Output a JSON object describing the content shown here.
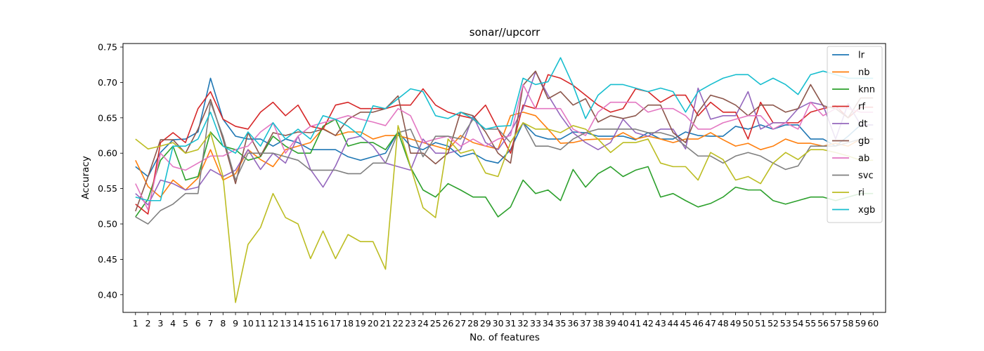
{
  "chart_data": {
    "type": "line",
    "title": "sonar//upcorr",
    "xlabel": "No. of features",
    "ylabel": "Accuracy",
    "xlim": [
      0,
      61
    ],
    "ylim": [
      0.375,
      0.755
    ],
    "grid": false,
    "legend_position": "top-right",
    "x": [
      1,
      2,
      3,
      4,
      5,
      6,
      7,
      8,
      9,
      10,
      11,
      12,
      13,
      14,
      15,
      16,
      17,
      18,
      19,
      20,
      21,
      22,
      23,
      24,
      25,
      26,
      27,
      28,
      29,
      30,
      31,
      32,
      33,
      34,
      35,
      36,
      37,
      38,
      39,
      40,
      41,
      42,
      43,
      44,
      45,
      46,
      47,
      48,
      49,
      50,
      51,
      52,
      53,
      54,
      55,
      56,
      57,
      58,
      59,
      60
    ],
    "x_tick_labels": [
      "1",
      "2",
      "3",
      "4",
      "5",
      "6",
      "7",
      "8",
      "9",
      "10",
      "11",
      "12",
      "13",
      "14",
      "15",
      "16",
      "17",
      "18",
      "19",
      "20",
      "21",
      "22",
      "23",
      "24",
      "25",
      "26",
      "27",
      "28",
      "29",
      "30",
      "31",
      "32",
      "33",
      "34",
      "35",
      "36",
      "37",
      "38",
      "39",
      "40",
      "41",
      "42",
      "43",
      "44",
      "45",
      "46",
      "47",
      "48",
      "49",
      "50",
      "51",
      "52",
      "53",
      "54",
      "55",
      "56",
      "57",
      "58",
      "59",
      "60"
    ],
    "y_ticks": [
      0.4,
      0.45,
      0.5,
      0.55,
      0.6,
      0.65,
      0.7,
      0.75
    ],
    "y_tick_labels": [
      "0.40",
      "0.45",
      "0.50",
      "0.55",
      "0.60",
      "0.65",
      "0.70",
      "0.75"
    ],
    "series": [
      {
        "name": "lr",
        "color": "#1f77b4",
        "values": [
          0.581,
          0.567,
          0.601,
          0.619,
          0.62,
          0.63,
          0.706,
          0.648,
          0.624,
          0.62,
          0.62,
          0.61,
          0.62,
          0.615,
          0.605,
          0.605,
          0.605,
          0.595,
          0.59,
          0.595,
          0.6,
          0.63,
          0.61,
          0.605,
          0.615,
          0.61,
          0.595,
          0.6,
          0.59,
          0.586,
          0.605,
          0.643,
          0.625,
          0.62,
          0.62,
          0.63,
          0.629,
          0.624,
          0.624,
          0.624,
          0.619,
          0.629,
          0.62,
          0.62,
          0.63,
          0.625,
          0.624,
          0.624,
          0.638,
          0.634,
          0.64,
          0.634,
          0.64,
          0.64,
          0.62,
          0.62,
          0.61,
          0.624,
          0.64,
          0.64
        ]
      },
      {
        "name": "nb",
        "color": "#ff7f0e",
        "values": [
          0.59,
          0.553,
          0.538,
          0.562,
          0.548,
          0.565,
          0.605,
          0.562,
          0.571,
          0.605,
          0.591,
          0.581,
          0.605,
          0.61,
          0.615,
          0.635,
          0.625,
          0.63,
          0.63,
          0.62,
          0.625,
          0.625,
          0.62,
          0.615,
          0.61,
          0.605,
          0.625,
          0.615,
          0.61,
          0.606,
          0.653,
          0.658,
          0.653,
          0.634,
          0.614,
          0.615,
          0.619,
          0.62,
          0.62,
          0.629,
          0.62,
          0.624,
          0.62,
          0.615,
          0.62,
          0.62,
          0.629,
          0.619,
          0.61,
          0.614,
          0.605,
          0.61,
          0.62,
          0.614,
          0.614,
          0.61,
          0.614,
          0.61,
          0.62,
          0.62
        ]
      },
      {
        "name": "knn",
        "color": "#2ca02c",
        "values": [
          0.51,
          0.535,
          0.59,
          0.61,
          0.562,
          0.567,
          0.63,
          0.61,
          0.605,
          0.59,
          0.595,
          0.624,
          0.61,
          0.6,
          0.6,
          0.638,
          0.648,
          0.61,
          0.615,
          0.615,
          0.605,
          0.63,
          0.58,
          0.548,
          0.538,
          0.557,
          0.548,
          0.538,
          0.538,
          0.51,
          0.524,
          0.562,
          0.543,
          0.548,
          0.533,
          0.577,
          0.552,
          0.571,
          0.581,
          0.567,
          0.576,
          0.581,
          0.538,
          0.543,
          0.533,
          0.524,
          0.529,
          0.538,
          0.552,
          0.548,
          0.548,
          0.533,
          0.528,
          0.533,
          0.538,
          0.538,
          0.533,
          0.538,
          0.543,
          0.543
        ]
      },
      {
        "name": "rf",
        "color": "#d62728",
        "values": [
          0.528,
          0.514,
          0.615,
          0.629,
          0.615,
          0.663,
          0.687,
          0.648,
          0.638,
          0.634,
          0.658,
          0.672,
          0.653,
          0.668,
          0.638,
          0.634,
          0.668,
          0.672,
          0.663,
          0.663,
          0.663,
          0.668,
          0.668,
          0.691,
          0.668,
          0.658,
          0.653,
          0.649,
          0.668,
          0.634,
          0.6,
          0.668,
          0.663,
          0.711,
          0.706,
          0.696,
          0.682,
          0.668,
          0.658,
          0.663,
          0.691,
          0.687,
          0.672,
          0.682,
          0.682,
          0.653,
          0.672,
          0.658,
          0.658,
          0.62,
          0.672,
          0.643,
          0.643,
          0.643,
          0.658,
          0.663,
          0.667,
          0.65,
          0.665,
          0.665
        ]
      },
      {
        "name": "dt",
        "color": "#9467bd",
        "values": [
          0.543,
          0.527,
          0.562,
          0.557,
          0.548,
          0.552,
          0.577,
          0.567,
          0.576,
          0.605,
          0.577,
          0.6,
          0.586,
          0.624,
          0.577,
          0.552,
          0.582,
          0.62,
          0.624,
          0.61,
          0.586,
          0.581,
          0.576,
          0.62,
          0.6,
          0.6,
          0.605,
          0.653,
          0.615,
          0.605,
          0.63,
          0.663,
          0.715,
          0.682,
          0.653,
          0.629,
          0.615,
          0.605,
          0.615,
          0.648,
          0.629,
          0.624,
          0.634,
          0.634,
          0.606,
          0.692,
          0.648,
          0.653,
          0.653,
          0.687,
          0.634,
          0.643,
          0.643,
          0.663,
          0.672,
          0.668,
          0.62,
          0.67,
          0.64,
          0.64
        ]
      },
      {
        "name": "gb",
        "color": "#8c564b",
        "values": [
          0.518,
          0.567,
          0.619,
          0.619,
          0.6,
          0.634,
          0.676,
          0.62,
          0.557,
          0.629,
          0.596,
          0.629,
          0.625,
          0.63,
          0.629,
          0.634,
          0.625,
          0.648,
          0.658,
          0.658,
          0.663,
          0.681,
          0.6,
          0.6,
          0.585,
          0.6,
          0.658,
          0.653,
          0.63,
          0.6,
          0.586,
          0.696,
          0.716,
          0.677,
          0.687,
          0.668,
          0.677,
          0.644,
          0.653,
          0.649,
          0.653,
          0.668,
          0.668,
          0.629,
          0.615,
          0.658,
          0.682,
          0.677,
          0.668,
          0.653,
          0.668,
          0.668,
          0.658,
          0.663,
          0.697,
          0.667,
          0.663,
          0.65,
          0.678,
          0.678
        ]
      },
      {
        "name": "ab",
        "color": "#e377c2",
        "values": [
          0.557,
          0.52,
          0.6,
          0.581,
          0.576,
          0.586,
          0.596,
          0.596,
          0.605,
          0.61,
          0.63,
          0.643,
          0.6,
          0.624,
          0.638,
          0.643,
          0.648,
          0.653,
          0.648,
          0.644,
          0.639,
          0.663,
          0.653,
          0.615,
          0.62,
          0.624,
          0.61,
          0.62,
          0.61,
          0.62,
          0.625,
          0.697,
          0.663,
          0.663,
          0.663,
          0.634,
          0.625,
          0.658,
          0.672,
          0.672,
          0.672,
          0.658,
          0.663,
          0.663,
          0.653,
          0.634,
          0.634,
          0.643,
          0.648,
          0.653,
          0.653,
          0.634,
          0.643,
          0.634,
          0.672,
          0.653,
          0.663,
          0.663,
          0.658,
          0.658
        ]
      },
      {
        "name": "svc",
        "color": "#7f7f7f",
        "values": [
          0.51,
          0.5,
          0.519,
          0.528,
          0.543,
          0.543,
          0.672,
          0.624,
          0.562,
          0.6,
          0.6,
          0.6,
          0.595,
          0.59,
          0.576,
          0.576,
          0.576,
          0.571,
          0.571,
          0.586,
          0.586,
          0.629,
          0.634,
          0.595,
          0.624,
          0.624,
          0.62,
          0.648,
          0.634,
          0.634,
          0.615,
          0.643,
          0.61,
          0.61,
          0.605,
          0.62,
          0.629,
          0.634,
          0.634,
          0.634,
          0.634,
          0.629,
          0.629,
          0.624,
          0.61,
          0.596,
          0.596,
          0.586,
          0.596,
          0.601,
          0.596,
          0.586,
          0.577,
          0.582,
          0.61,
          0.61,
          0.61,
          0.615,
          0.62,
          0.62
        ]
      },
      {
        "name": "ri",
        "color": "#bcbd22",
        "values": [
          0.62,
          0.606,
          0.61,
          0.615,
          0.6,
          0.605,
          0.629,
          0.567,
          0.389,
          0.471,
          0.495,
          0.543,
          0.509,
          0.5,
          0.451,
          0.49,
          0.451,
          0.485,
          0.475,
          0.475,
          0.436,
          0.639,
          0.581,
          0.523,
          0.509,
          0.62,
          0.6,
          0.605,
          0.572,
          0.567,
          0.615,
          0.643,
          0.634,
          0.634,
          0.629,
          0.639,
          0.634,
          0.62,
          0.601,
          0.615,
          0.615,
          0.62,
          0.586,
          0.581,
          0.581,
          0.562,
          0.601,
          0.591,
          0.562,
          0.567,
          0.557,
          0.586,
          0.601,
          0.591,
          0.605,
          0.605,
          0.601,
          0.596,
          0.59,
          0.59
        ]
      },
      {
        "name": "xgb",
        "color": "#17becf",
        "values": [
          0.538,
          0.533,
          0.533,
          0.61,
          0.61,
          0.62,
          0.658,
          0.61,
          0.6,
          0.63,
          0.61,
          0.643,
          0.62,
          0.634,
          0.62,
          0.653,
          0.648,
          0.638,
          0.624,
          0.667,
          0.663,
          0.677,
          0.691,
          0.687,
          0.653,
          0.649,
          0.658,
          0.649,
          0.634,
          0.638,
          0.639,
          0.706,
          0.697,
          0.701,
          0.735,
          0.696,
          0.649,
          0.682,
          0.697,
          0.697,
          0.692,
          0.687,
          0.692,
          0.687,
          0.658,
          0.687,
          0.697,
          0.706,
          0.711,
          0.711,
          0.697,
          0.706,
          0.697,
          0.683,
          0.711,
          0.716,
          0.711,
          0.706,
          0.706,
          0.706
        ]
      }
    ]
  }
}
